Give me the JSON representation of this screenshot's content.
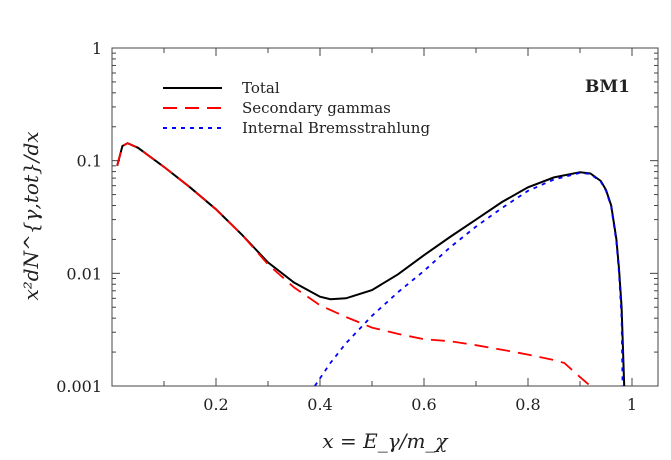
{
  "chart_data": {
    "type": "line",
    "title": "",
    "annotation": "BM1",
    "xlabel": "x = E_γ/m_χ",
    "ylabel": "x²dN^{γ,tot}/dx",
    "xlim": [
      0,
      1.05
    ],
    "ylim": [
      0.001,
      1
    ],
    "yscale": "log",
    "grid": false,
    "legend_position": "top-left",
    "xticks": [
      {
        "v": 0.2,
        "label": "0.2"
      },
      {
        "v": 0.4,
        "label": "0.4"
      },
      {
        "v": 0.6,
        "label": "0.6"
      },
      {
        "v": 0.8,
        "label": "0.8"
      },
      {
        "v": 1,
        "label": "1"
      }
    ],
    "yticks": [
      {
        "v": 0.001,
        "label": "0.001"
      },
      {
        "v": 0.01,
        "label": "0.01"
      },
      {
        "v": 0.1,
        "label": "0.1"
      },
      {
        "v": 1,
        "label": "1"
      }
    ],
    "series": [
      {
        "name": "Total",
        "color": "#000000",
        "style": "solid",
        "x": [
          0.01,
          0.02,
          0.03,
          0.05,
          0.1,
          0.15,
          0.2,
          0.25,
          0.3,
          0.35,
          0.4,
          0.42,
          0.45,
          0.5,
          0.55,
          0.6,
          0.65,
          0.7,
          0.75,
          0.8,
          0.85,
          0.9,
          0.92,
          0.94,
          0.95,
          0.96,
          0.97,
          0.975,
          0.98,
          0.985
        ],
        "y": [
          0.09,
          0.135,
          0.143,
          0.13,
          0.088,
          0.058,
          0.037,
          0.022,
          0.0125,
          0.0083,
          0.0062,
          0.0059,
          0.006,
          0.0071,
          0.0098,
          0.0145,
          0.021,
          0.03,
          0.043,
          0.058,
          0.071,
          0.079,
          0.077,
          0.066,
          0.055,
          0.04,
          0.02,
          0.011,
          0.005,
          0.001
        ]
      },
      {
        "name": "Secondary gammas",
        "color": "#ff0000",
        "style": "dashed",
        "x": [
          0.01,
          0.02,
          0.03,
          0.05,
          0.1,
          0.15,
          0.2,
          0.25,
          0.3,
          0.35,
          0.4,
          0.45,
          0.5,
          0.55,
          0.6,
          0.65,
          0.7,
          0.75,
          0.8,
          0.85,
          0.87,
          0.9,
          0.92
        ],
        "y": [
          0.09,
          0.135,
          0.143,
          0.13,
          0.088,
          0.058,
          0.037,
          0.022,
          0.012,
          0.0075,
          0.0052,
          0.0041,
          0.0033,
          0.0029,
          0.0026,
          0.0025,
          0.0023,
          0.0021,
          0.0019,
          0.0017,
          0.0016,
          0.0012,
          0.001
        ]
      },
      {
        "name": "Internal Bremsstrahlung",
        "color": "#0000ff",
        "style": "dotted",
        "x": [
          0.39,
          0.42,
          0.45,
          0.5,
          0.55,
          0.6,
          0.65,
          0.7,
          0.75,
          0.8,
          0.85,
          0.9,
          0.92,
          0.94,
          0.95,
          0.96,
          0.97,
          0.975,
          0.98,
          0.982
        ],
        "y": [
          0.001,
          0.0016,
          0.0024,
          0.0042,
          0.0068,
          0.0105,
          0.017,
          0.026,
          0.038,
          0.054,
          0.068,
          0.078,
          0.076,
          0.065,
          0.054,
          0.039,
          0.019,
          0.01,
          0.004,
          0.001
        ]
      }
    ]
  }
}
